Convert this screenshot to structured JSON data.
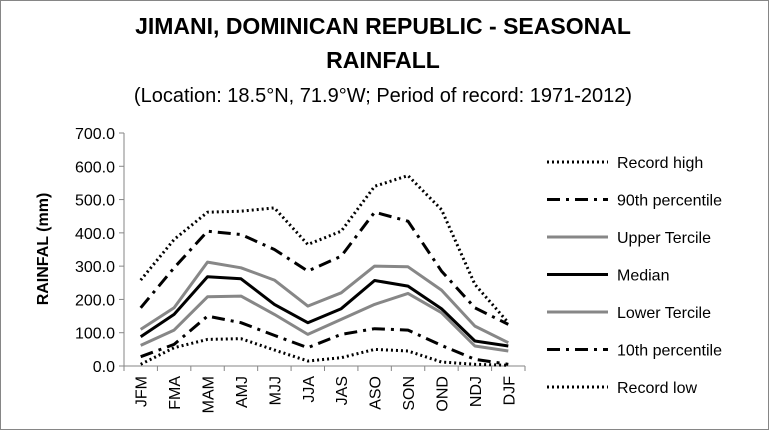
{
  "chart_data": {
    "type": "line",
    "title": "JIMANI, DOMINICAN REPUBLIC - SEASONAL RAINFALL",
    "title_lines": [
      "JIMANI, DOMINICAN REPUBLIC - SEASONAL",
      "RAINFALL"
    ],
    "subtitle": "(Location: 18.5°N, 71.9°W; Period of record: 1971-2012)",
    "xlabel": "",
    "ylabel": "RAINFAL (mm)",
    "categories": [
      "JFM",
      "FMA",
      "MAM",
      "AMJ",
      "MJJ",
      "JJA",
      "JAS",
      "ASO",
      "SON",
      "OND",
      "NDJ",
      "DJF"
    ],
    "yticks": [
      "0.0",
      "100.0",
      "200.0",
      "300.0",
      "400.0",
      "500.0",
      "600.0",
      "700.0"
    ],
    "ylim": [
      0,
      700
    ],
    "grid": false,
    "legend_position": "right",
    "series": [
      {
        "name": "Record high",
        "color": "#000000",
        "style": "dotted",
        "values": [
          258,
          380,
          462,
          465,
          475,
          365,
          405,
          540,
          572,
          470,
          245,
          130
        ]
      },
      {
        "name": "90th percentile",
        "color": "#000000",
        "style": "dashdot",
        "values": [
          175,
          295,
          405,
          395,
          350,
          285,
          330,
          462,
          435,
          285,
          175,
          125
        ]
      },
      {
        "name": "Upper Tercile",
        "color": "#878787",
        "style": "solid",
        "values": [
          110,
          175,
          312,
          295,
          258,
          180,
          220,
          300,
          298,
          228,
          120,
          70
        ]
      },
      {
        "name": "Median",
        "color": "#000000",
        "style": "solid",
        "values": [
          88,
          155,
          268,
          262,
          185,
          130,
          172,
          257,
          240,
          172,
          75,
          60
        ]
      },
      {
        "name": "Lower Tercile",
        "color": "#878787",
        "style": "solid",
        "values": [
          62,
          108,
          208,
          210,
          155,
          95,
          140,
          185,
          218,
          160,
          60,
          45
        ]
      },
      {
        "name": "10th percentile",
        "color": "#000000",
        "style": "dashdot",
        "values": [
          28,
          65,
          150,
          130,
          92,
          55,
          95,
          112,
          108,
          62,
          20,
          5
        ]
      },
      {
        "name": "Record low",
        "color": "#000000",
        "style": "dotted",
        "values": [
          5,
          55,
          80,
          82,
          48,
          15,
          25,
          50,
          45,
          12,
          5,
          2
        ]
      }
    ]
  }
}
